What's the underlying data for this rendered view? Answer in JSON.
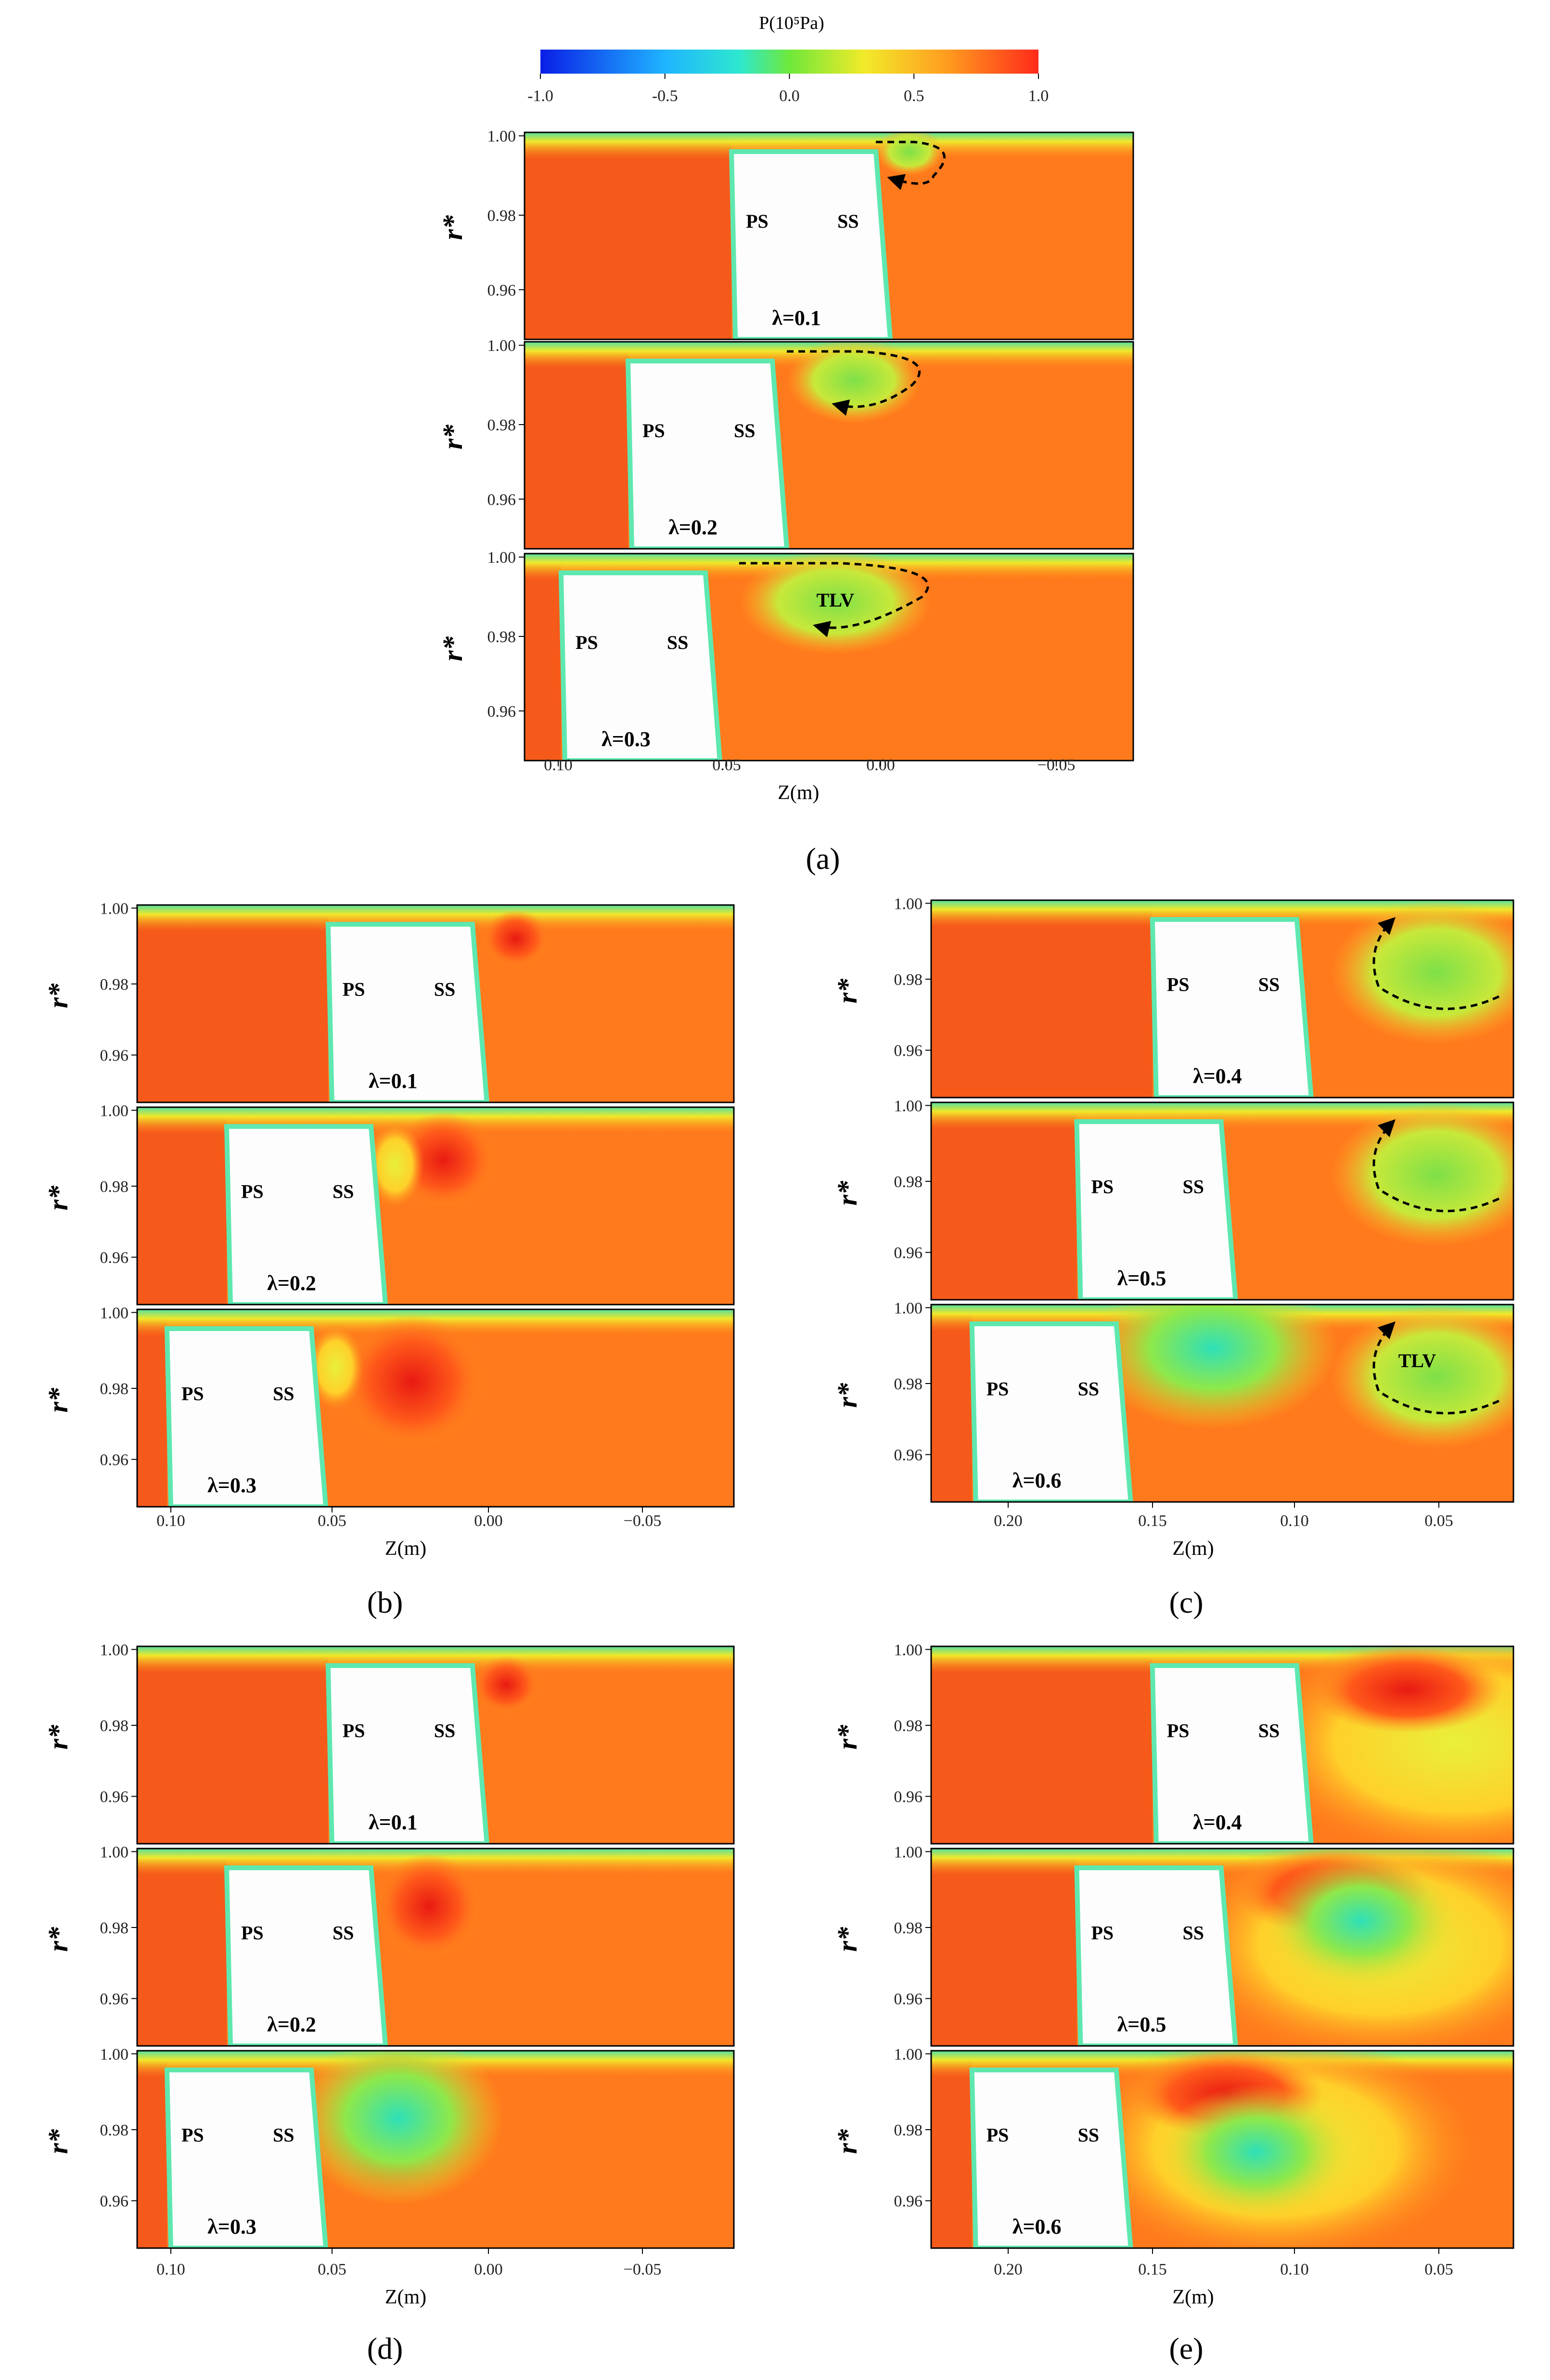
{
  "colorbar": {
    "title": "P(10⁵Pa)",
    "ticks": [
      "-1.0",
      "-0.5",
      "0.0",
      "0.5",
      "1.0"
    ],
    "range": [
      -1.0,
      1.0
    ],
    "colors": [
      "#0a1ee6",
      "#1fb4ff",
      "#2ee8d0",
      "#6ee83a",
      "#f2ea2a",
      "#ff9a1f",
      "#ff2a1a"
    ]
  },
  "chart_data": [
    {
      "id": "a",
      "label": "(a)",
      "type": "heatmap",
      "xlabel": "Z(m)",
      "ylabel": "r*",
      "x_ticks": [
        "0.10",
        "0.05",
        "0.00",
        "−0.05"
      ],
      "y_ticks": [
        "1.00",
        "0.98",
        "0.96"
      ],
      "rows": [
        {
          "lambda": "λ=0.1",
          "labels": [
            "PS",
            "SS"
          ],
          "annot": ""
        },
        {
          "lambda": "λ=0.2",
          "labels": [
            "PS",
            "SS"
          ],
          "annot": ""
        },
        {
          "lambda": "λ=0.3",
          "labels": [
            "PS",
            "SS"
          ],
          "annot": "TLV"
        }
      ]
    },
    {
      "id": "b",
      "label": "(b)",
      "type": "heatmap",
      "xlabel": "Z(m)",
      "ylabel": "r*",
      "x_ticks": [
        "0.10",
        "0.05",
        "0.00",
        "−0.05"
      ],
      "y_ticks": [
        "1.00",
        "0.98",
        "0.96"
      ],
      "rows": [
        {
          "lambda": "λ=0.1",
          "labels": [
            "PS",
            "SS"
          ],
          "annot": ""
        },
        {
          "lambda": "λ=0.2",
          "labels": [
            "PS",
            "SS"
          ],
          "annot": ""
        },
        {
          "lambda": "λ=0.3",
          "labels": [
            "PS",
            "SS"
          ],
          "annot": ""
        }
      ]
    },
    {
      "id": "c",
      "label": "(c)",
      "type": "heatmap",
      "xlabel": "Z(m)",
      "ylabel": "r*",
      "x_ticks": [
        "0.20",
        "0.15",
        "0.10",
        "0.05"
      ],
      "y_ticks": [
        "1.00",
        "0.98",
        "0.96"
      ],
      "rows": [
        {
          "lambda": "λ=0.4",
          "labels": [
            "PS",
            "SS"
          ],
          "annot": ""
        },
        {
          "lambda": "λ=0.5",
          "labels": [
            "PS",
            "SS"
          ],
          "annot": ""
        },
        {
          "lambda": "λ=0.6",
          "labels": [
            "PS",
            "SS"
          ],
          "annot": "TLV"
        }
      ]
    },
    {
      "id": "d",
      "label": "(d)",
      "type": "heatmap",
      "xlabel": "Z(m)",
      "ylabel": "r*",
      "x_ticks": [
        "0.10",
        "0.05",
        "0.00",
        "−0.05"
      ],
      "y_ticks": [
        "1.00",
        "0.98",
        "0.96"
      ],
      "rows": [
        {
          "lambda": "λ=0.1",
          "labels": [
            "PS",
            "SS"
          ],
          "annot": ""
        },
        {
          "lambda": "λ=0.2",
          "labels": [
            "PS",
            "SS"
          ],
          "annot": ""
        },
        {
          "lambda": "λ=0.3",
          "labels": [
            "PS",
            "SS"
          ],
          "annot": ""
        }
      ]
    },
    {
      "id": "e",
      "label": "(e)",
      "type": "heatmap",
      "xlabel": "Z(m)",
      "ylabel": "r*",
      "x_ticks": [
        "0.20",
        "0.15",
        "0.10",
        "0.05"
      ],
      "y_ticks": [
        "1.00",
        "0.98",
        "0.96"
      ],
      "rows": [
        {
          "lambda": "λ=0.4",
          "labels": [
            "PS",
            "SS"
          ],
          "annot": ""
        },
        {
          "lambda": "λ=0.5",
          "labels": [
            "PS",
            "SS"
          ],
          "annot": ""
        },
        {
          "lambda": "λ=0.6",
          "labels": [
            "PS",
            "SS"
          ],
          "annot": ""
        }
      ]
    }
  ]
}
